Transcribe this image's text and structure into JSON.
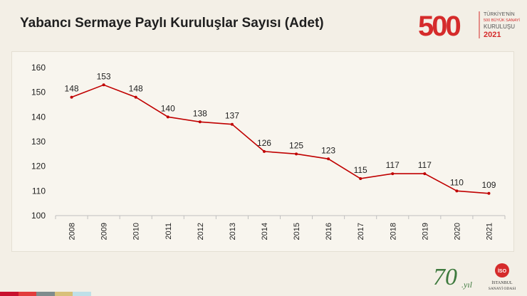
{
  "slide": {
    "title": "Yabancı Sermaye Paylı Kuruluşlar Sayısı (Adet)"
  },
  "branding": {
    "logo_500": {
      "number": "500",
      "line1": "TÜRKİYE'NİN",
      "line2": "500 BÜYÜK SANAYİ",
      "line3": "KURULUŞU",
      "year": "2021"
    },
    "logo_70": {
      "number": "70",
      "suffix": ".yıl"
    },
    "logo_iso": {
      "mark": "İSO",
      "line1": "İSTANBUL",
      "line2": "SANAYİ ODASI"
    },
    "stripe_colors": [
      "#c8102e",
      "#e23c3c",
      "#7f8c8d",
      "#d8c07a",
      "#bfe0e8"
    ]
  },
  "colors": {
    "series": "#c00000",
    "axis": "#bfbfbf",
    "text": "#1f1f1f",
    "brand_red": "#d52b2b"
  },
  "chart_data": {
    "type": "line",
    "title": "",
    "xlabel": "",
    "ylabel": "",
    "x": [
      "2008",
      "2009",
      "2010",
      "2011",
      "2012",
      "2013",
      "2014",
      "2015",
      "2016",
      "2017",
      "2018",
      "2019",
      "2020",
      "2021"
    ],
    "values": [
      148,
      153,
      148,
      140,
      138,
      137,
      126,
      125,
      123,
      115,
      117,
      117,
      110,
      109
    ],
    "ylim": [
      100,
      160
    ],
    "yticks": [
      100,
      110,
      120,
      130,
      140,
      150,
      160
    ],
    "grid": false,
    "data_labels": true,
    "legend": "none"
  }
}
